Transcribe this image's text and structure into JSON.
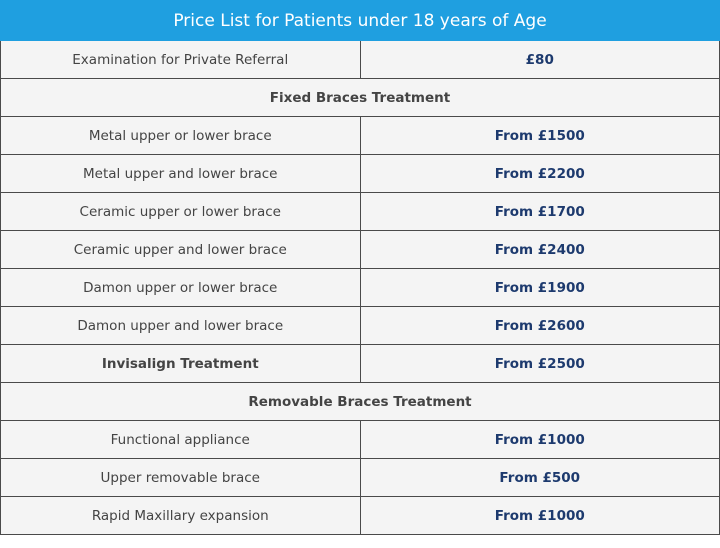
{
  "title": "Price List for Patients under 18 years of Age",
  "rows": [
    {
      "type": "item",
      "label": "Examination for Private Referral",
      "price": "£80"
    },
    {
      "type": "section",
      "label": "Fixed Braces Treatment"
    },
    {
      "type": "item",
      "label": "Metal upper or lower brace",
      "price": "From £1500"
    },
    {
      "type": "item",
      "label": "Metal upper and lower brace",
      "price": "From £2200"
    },
    {
      "type": "item",
      "label": "Ceramic upper or lower brace",
      "price": "From £1700"
    },
    {
      "type": "item",
      "label": "Ceramic upper and lower brace",
      "price": "From £2400"
    },
    {
      "type": "item",
      "label": "Damon upper or lower brace",
      "price": "From £1900"
    },
    {
      "type": "item",
      "label": "Damon upper and lower brace",
      "price": "From £2600"
    },
    {
      "type": "item-bold",
      "label": "Invisalign Treatment",
      "price": "From £2500"
    },
    {
      "type": "section",
      "label": "Removable Braces Treatment"
    },
    {
      "type": "item",
      "label": "Functional appliance",
      "price": "From £1000"
    },
    {
      "type": "item",
      "label": "Upper removable brace",
      "price": "From £500"
    },
    {
      "type": "item",
      "label": "Rapid Maxillary expansion",
      "price": "From £1000"
    }
  ],
  "colors": {
    "header_bg": "#1f9fe0",
    "price_text": "#1d3a6e",
    "cell_bg": "#f4f4f4",
    "border": "#4a4a4a"
  }
}
